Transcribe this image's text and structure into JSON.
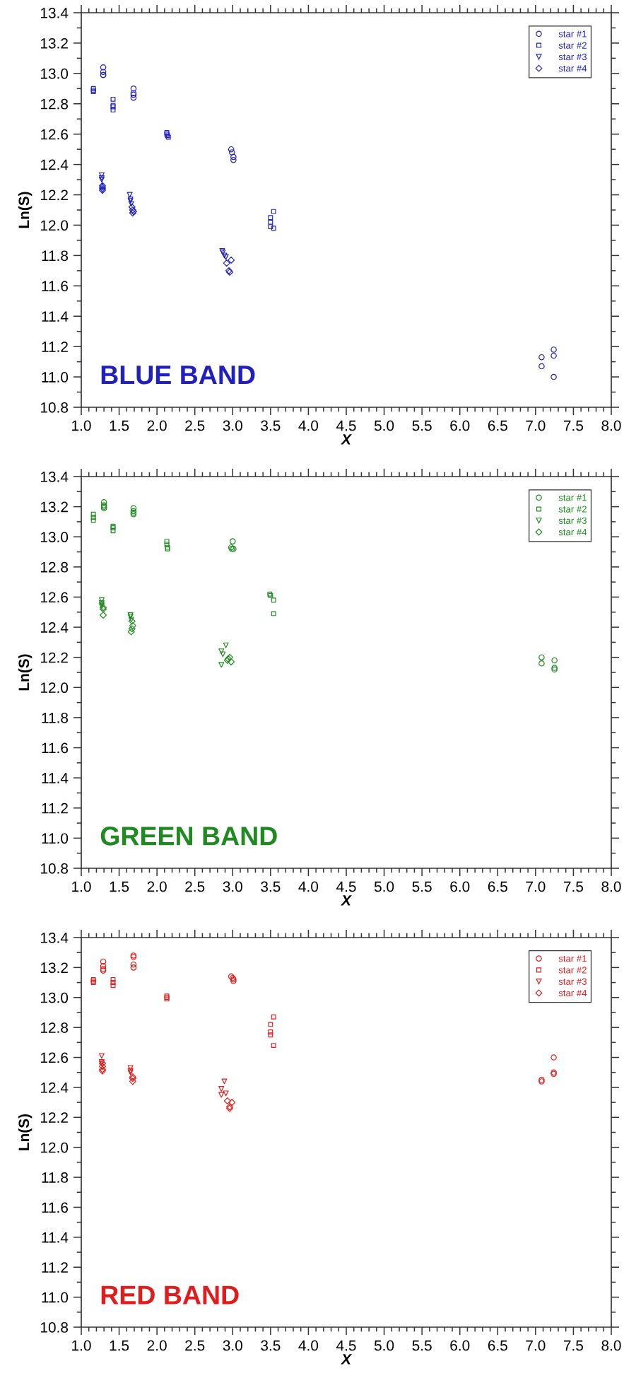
{
  "chart_data": [
    {
      "type": "scatter",
      "xlabel": "X",
      "ylabel": "Ln(S)",
      "annotations": [
        "BLUE BAND"
      ],
      "legend": "top right",
      "xlim": [
        1.0,
        8.0
      ],
      "ylim": [
        10.8,
        13.4
      ],
      "xticks": [
        {
          "value": 1.0,
          "label": "1.0"
        },
        1.5,
        {
          "value": 2.0,
          "label": "2.0"
        },
        2.5,
        {
          "value": 3.0,
          "label": "3.0"
        },
        3.5,
        {
          "value": 4.0,
          "label": "4.0"
        },
        4.5,
        {
          "value": 5.0,
          "label": "5.0"
        },
        5.5,
        {
          "value": 6.0,
          "label": "6.0"
        },
        6.5,
        {
          "value": 7.0,
          "label": "7.0"
        },
        7.5,
        {
          "value": 8.0,
          "label": "8.0"
        }
      ],
      "yticks": [
        10.8,
        {
          "value": 11.0,
          "label": "11.0"
        },
        11.2,
        11.4,
        11.6,
        11.8,
        {
          "value": 12.0,
          "label": "12.0"
        },
        12.2,
        12.4,
        12.6,
        12.8,
        {
          "value": 13.0,
          "label": "13.0"
        },
        13.2,
        13.4
      ],
      "series": [
        {
          "name": "star #1",
          "color": "#2020c0",
          "marker": "circle",
          "x": [
            1.29,
            1.29,
            1.29,
            1.29,
            1.69,
            1.69,
            1.69,
            1.69,
            2.98,
            2.99,
            3.01,
            3.01,
            7.08,
            7.08,
            7.24,
            7.24,
            7.24
          ],
          "values": [
            13.04,
            13.01,
            12.99,
            12.99,
            12.9,
            12.87,
            12.86,
            12.84,
            12.5,
            12.48,
            12.45,
            12.43,
            11.13,
            11.07,
            11.18,
            11.14,
            11.0
          ]
        },
        {
          "name": "star #2",
          "color": "#2020c0",
          "marker": "square",
          "x": [
            1.16,
            1.16,
            1.16,
            1.42,
            1.42,
            1.42,
            1.42,
            2.13,
            2.13,
            2.14,
            2.15,
            3.5,
            3.5,
            3.5,
            3.54,
            3.54
          ],
          "values": [
            12.9,
            12.89,
            12.88,
            12.83,
            12.79,
            12.78,
            12.76,
            12.61,
            12.6,
            12.59,
            12.58,
            12.05,
            12.02,
            11.99,
            12.09,
            11.98
          ]
        },
        {
          "name": "star #3",
          "color": "#2020c0",
          "marker": "triangle",
          "x": [
            1.27,
            1.27,
            1.27,
            1.64,
            1.65,
            1.65,
            1.66,
            2.86,
            2.87,
            2.89,
            2.91
          ],
          "values": [
            12.33,
            12.31,
            12.3,
            12.2,
            12.17,
            12.16,
            12.14,
            11.83,
            11.82,
            11.8,
            11.79
          ]
        },
        {
          "name": "star #4",
          "color": "#2020c0",
          "marker": "diamond",
          "x": [
            1.28,
            1.28,
            1.28,
            1.28,
            1.67,
            1.68,
            1.69,
            1.68,
            2.92,
            2.98,
            2.95,
            2.96
          ],
          "values": [
            12.26,
            12.25,
            12.24,
            12.23,
            12.12,
            12.1,
            12.09,
            12.08,
            11.75,
            11.77,
            11.7,
            11.69
          ]
        }
      ]
    },
    {
      "type": "scatter",
      "xlabel": "X",
      "ylabel": "Ln(S)",
      "annotations": [
        "GREEN BAND"
      ],
      "legend": "top right",
      "xlim": [
        1.0,
        8.0
      ],
      "ylim": [
        10.8,
        13.4
      ],
      "xticks": [
        {
          "value": 1.0,
          "label": "1.0"
        },
        1.5,
        {
          "value": 2.0,
          "label": "2.0"
        },
        2.5,
        {
          "value": 3.0,
          "label": "3.0"
        },
        3.5,
        {
          "value": 4.0,
          "label": "4.0"
        },
        4.5,
        {
          "value": 5.0,
          "label": "5.0"
        },
        5.5,
        {
          "value": 6.0,
          "label": "6.0"
        },
        6.5,
        {
          "value": 7.0,
          "label": "7.0"
        },
        7.5,
        {
          "value": 8.0,
          "label": "8.0"
        }
      ],
      "yticks": [
        10.8,
        {
          "value": 11.0,
          "label": "11.0"
        },
        11.2,
        11.4,
        11.6,
        11.8,
        {
          "value": 12.0,
          "label": "12.0"
        },
        12.2,
        12.4,
        12.6,
        12.8,
        {
          "value": 13.0,
          "label": "13.0"
        },
        13.2,
        13.4
      ],
      "series": [
        {
          "name": "star #1",
          "color": "#1f8a1f",
          "marker": "circle",
          "x": [
            1.3,
            1.3,
            1.3,
            1.3,
            1.69,
            1.69,
            1.69,
            1.69,
            3.0,
            2.98,
            2.99,
            3.01,
            7.08,
            7.08,
            7.25,
            7.25,
            7.25
          ],
          "values": [
            13.23,
            13.21,
            13.2,
            13.19,
            13.19,
            13.17,
            13.16,
            13.15,
            12.97,
            12.93,
            12.92,
            12.92,
            12.2,
            12.16,
            12.18,
            12.13,
            12.12
          ]
        },
        {
          "name": "star #2",
          "color": "#1f8a1f",
          "marker": "square",
          "x": [
            1.16,
            1.16,
            1.16,
            1.42,
            1.42,
            1.42,
            2.13,
            2.13,
            2.14,
            2.14,
            3.49,
            3.5,
            3.54,
            3.54
          ],
          "values": [
            13.15,
            13.13,
            13.11,
            13.07,
            13.06,
            13.04,
            12.97,
            12.95,
            12.93,
            12.92,
            12.62,
            12.61,
            12.58,
            12.49
          ]
        },
        {
          "name": "star #3",
          "color": "#1f8a1f",
          "marker": "triangle",
          "x": [
            1.27,
            1.27,
            1.27,
            1.27,
            1.65,
            1.65,
            1.66,
            2.91,
            2.85,
            2.87,
            2.85
          ],
          "values": [
            12.58,
            12.56,
            12.55,
            12.54,
            12.48,
            12.47,
            12.45,
            12.28,
            12.24,
            12.22,
            12.15
          ]
        },
        {
          "name": "star #4",
          "color": "#1f8a1f",
          "marker": "diamond",
          "x": [
            1.29,
            1.29,
            1.29,
            1.67,
            1.68,
            1.67,
            1.66,
            2.96,
            2.94,
            2.98,
            2.93
          ],
          "values": [
            12.53,
            12.52,
            12.48,
            12.44,
            12.41,
            12.39,
            12.37,
            12.2,
            12.19,
            12.17,
            12.18
          ]
        }
      ]
    },
    {
      "type": "scatter",
      "xlabel": "X",
      "ylabel": "Ln(S)",
      "annotations": [
        "RED BAND"
      ],
      "legend": "top right",
      "xlim": [
        1.0,
        8.0
      ],
      "ylim": [
        10.8,
        13.4
      ],
      "xticks": [
        {
          "value": 1.0,
          "label": "1.0"
        },
        1.5,
        {
          "value": 2.0,
          "label": "2.0"
        },
        2.5,
        {
          "value": 3.0,
          "label": "3.0"
        },
        3.5,
        {
          "value": 4.0,
          "label": "4.0"
        },
        4.5,
        {
          "value": 5.0,
          "label": "5.0"
        },
        5.5,
        {
          "value": 6.0,
          "label": "6.0"
        },
        6.5,
        {
          "value": 7.0,
          "label": "7.0"
        },
        7.5,
        {
          "value": 8.0,
          "label": "8.0"
        }
      ],
      "yticks": [
        10.8,
        {
          "value": 11.0,
          "label": "11.0"
        },
        11.2,
        11.4,
        11.6,
        11.8,
        {
          "value": 12.0,
          "label": "12.0"
        },
        12.2,
        12.4,
        12.6,
        12.8,
        {
          "value": 13.0,
          "label": "13.0"
        },
        13.2,
        13.4
      ],
      "series": [
        {
          "name": "star #1",
          "color": "#e01c1c",
          "marker": "circle",
          "x": [
            1.29,
            1.29,
            1.29,
            1.29,
            1.69,
            1.69,
            1.69,
            1.69,
            2.98,
            3.0,
            3.01,
            3.01,
            7.08,
            7.08,
            7.24,
            7.24,
            7.24
          ],
          "values": [
            13.24,
            13.21,
            13.19,
            13.18,
            13.28,
            13.27,
            13.22,
            13.2,
            13.14,
            13.13,
            13.12,
            13.11,
            12.45,
            12.44,
            12.6,
            12.5,
            12.49
          ]
        },
        {
          "name": "star #2",
          "color": "#e01c1c",
          "marker": "square",
          "x": [
            1.16,
            1.16,
            1.16,
            1.42,
            1.42,
            1.42,
            2.13,
            2.13,
            2.13,
            3.54,
            3.5,
            3.5,
            3.5,
            3.54
          ],
          "values": [
            13.12,
            13.11,
            13.1,
            13.12,
            13.1,
            13.08,
            13.01,
            13.0,
            12.99,
            12.87,
            12.82,
            12.77,
            12.75,
            12.68
          ]
        },
        {
          "name": "star #3",
          "color": "#e01c1c",
          "marker": "triangle",
          "x": [
            1.27,
            1.27,
            1.27,
            1.65,
            1.65,
            1.65,
            2.89,
            2.85,
            2.85,
            2.91
          ],
          "values": [
            12.61,
            12.57,
            12.56,
            12.53,
            12.51,
            12.5,
            12.44,
            12.39,
            12.35,
            12.36
          ]
        },
        {
          "name": "star #4",
          "color": "#e01c1c",
          "marker": "diamond",
          "x": [
            1.28,
            1.28,
            1.28,
            1.28,
            1.68,
            1.68,
            1.68,
            2.93,
            2.99,
            2.96,
            2.96
          ],
          "values": [
            12.56,
            12.54,
            12.52,
            12.51,
            12.47,
            12.46,
            12.44,
            12.31,
            12.3,
            12.27,
            12.26
          ]
        }
      ]
    }
  ]
}
